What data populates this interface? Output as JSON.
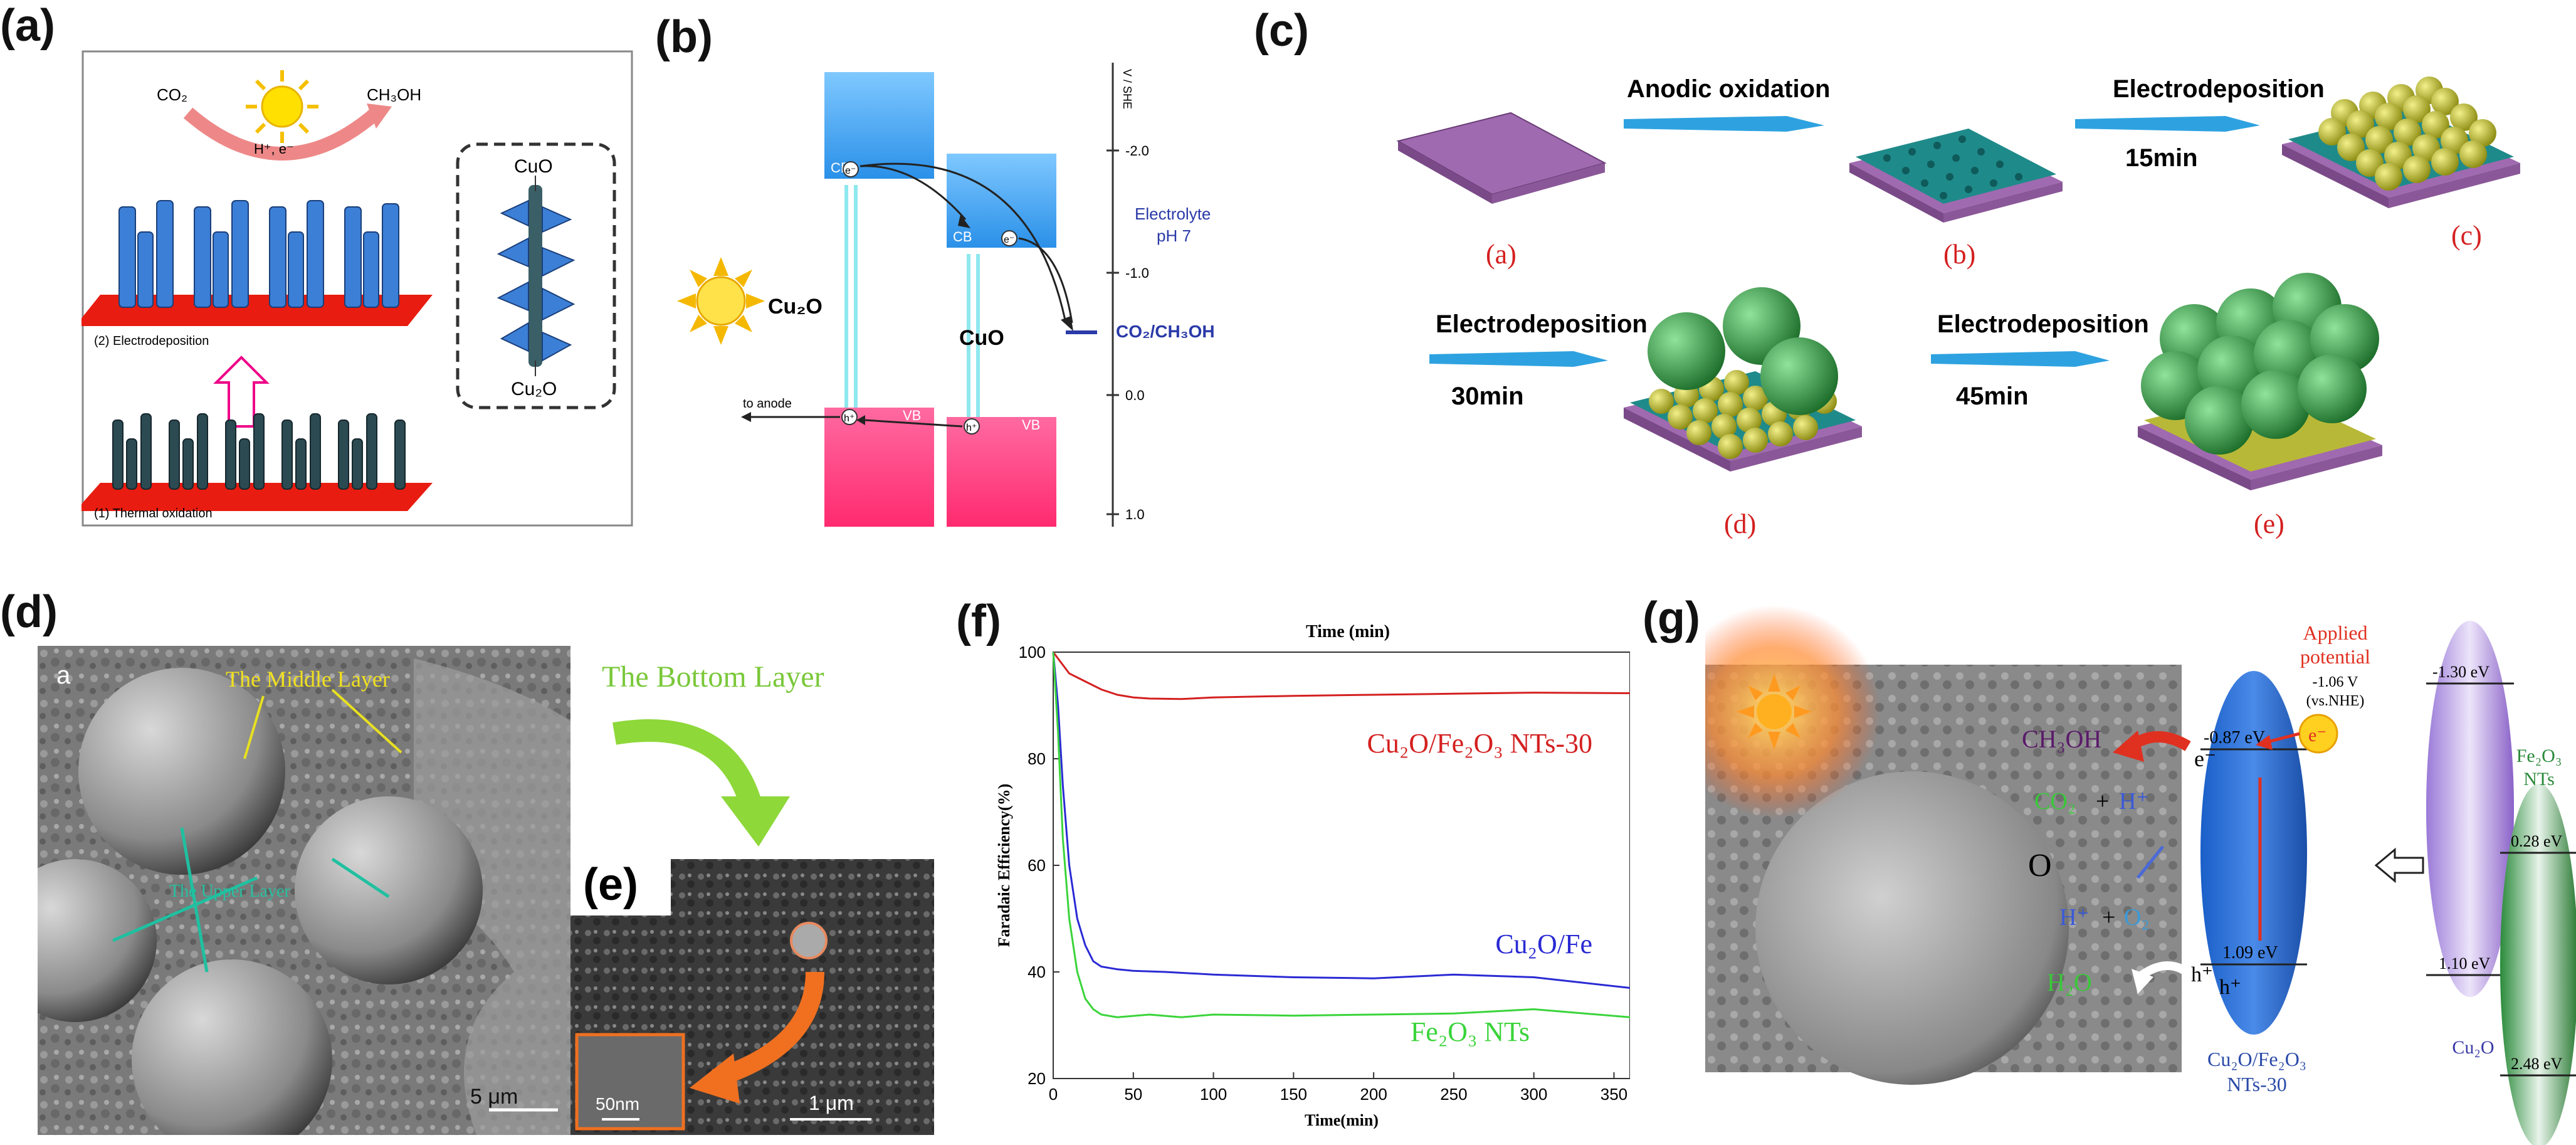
{
  "labels": {
    "a": "(a)",
    "b": "(b)",
    "c": "(c)",
    "d": "(d)",
    "e": "(e)",
    "f": "(f)",
    "g": "(g)"
  },
  "panel_a": {
    "co2": "CO₂",
    "ch3oh": "CH₃OH",
    "carriers": "H⁺, e⁻",
    "step2": "(2) Electrodeposition",
    "step1": "(1) Thermal oxidation",
    "cuo": "CuO",
    "cu2o": "Cu₂O"
  },
  "panel_b": {
    "axis_title": "V / SHE",
    "ticks": [
      "-2.0",
      "-1.0",
      "0.0",
      "1.0"
    ],
    "electrolyte": "Electrolyte",
    "ph": "pH 7",
    "cb": "CB",
    "vb": "VB",
    "cu2o": "Cu₂O",
    "cuo": "CuO",
    "redox": "CO₂/CH₃OH",
    "to_anode": "to anode",
    "electron": "e⁻",
    "hole": "h⁺"
  },
  "panel_c": {
    "anodic": "Anodic oxidation",
    "electrodep": "Electrodeposition",
    "t15": "15min",
    "t30": "30min",
    "t45": "45min",
    "sa": "(a)",
    "sb": "(b)",
    "sc": "(c)",
    "sd": "(d)",
    "se": "(e)"
  },
  "panel_d": {
    "a": "a",
    "middle": "The Middle Layer",
    "bottom": "The Bottom Layer",
    "upper": "The Upper Layer",
    "scale": "5 μm"
  },
  "panel_e": {
    "scale1": "1 μm",
    "scale2": "50nm"
  },
  "panel_f": {
    "top_title": "Time (min)",
    "xlabel": "Time(min)",
    "ylabel": "Faradaic Efficiency(%)",
    "s1": "Cu₂O/Fe₂O₃ NTs-30",
    "s2": "Cu₂O/Fe",
    "s3": "Fe₂O₃ NTs"
  },
  "panel_g": {
    "applied": "Applied",
    "potential": "potential",
    "v": "-1.06 V",
    "vs": "(vs.NHE)",
    "ch3oh": "CH₃OH",
    "co2": "CO₂",
    "plus": "+",
    "hplus": "H⁺",
    "h2o": "H₂O",
    "o2": "O₂",
    "e1": "e⁻",
    "e2": "e⁻",
    "h1": "h⁺",
    "h2": "h⁺",
    "ev087": "-0.87 eV",
    "ev109": "1.09 eV",
    "ev130": "-1.30 eV",
    "ev110": "1.10 eV",
    "ev028": "0.28 eV",
    "ev248": "2.48 eV",
    "composite": "Cu₂O/Fe₂O₃",
    "nts30": "NTs-30",
    "cu2o": "Cu₂O",
    "fe2o3": "Fe₂O₃",
    "nts": "NTs"
  },
  "chart_data": {
    "type": "line",
    "title": "Time (min)",
    "xlabel": "Time(min)",
    "ylabel": "Faradaic Efficiency(%)",
    "xlim": [
      0,
      360
    ],
    "ylim": [
      20,
      100
    ],
    "xticks": [
      0,
      50,
      100,
      150,
      200,
      250,
      300,
      350
    ],
    "yticks": [
      20,
      40,
      60,
      80,
      100
    ],
    "series": [
      {
        "name": "Cu₂O/Fe₂O₃ NTs-30",
        "color": "#d42020",
        "x": [
          0,
          5,
          10,
          20,
          30,
          40,
          50,
          60,
          80,
          100,
          150,
          200,
          250,
          300,
          360
        ],
        "y": [
          100,
          98,
          96,
          94.5,
          93,
          92,
          91.5,
          91.3,
          91.2,
          91.5,
          91.8,
          92,
          92.2,
          92.4,
          92.3
        ]
      },
      {
        "name": "Cu₂O/Fe",
        "color": "#2a2ad4",
        "x": [
          0,
          3,
          6,
          10,
          15,
          20,
          25,
          30,
          40,
          50,
          70,
          100,
          150,
          200,
          250,
          300,
          330,
          360
        ],
        "y": [
          100,
          90,
          75,
          60,
          50,
          45,
          42,
          41,
          40.5,
          40.2,
          40,
          39.5,
          39,
          38.8,
          39.5,
          39,
          38,
          37
        ]
      },
      {
        "name": "Fe₂O₃ NTs",
        "color": "#3ad43a",
        "x": [
          0,
          3,
          6,
          10,
          15,
          20,
          25,
          30,
          40,
          60,
          80,
          100,
          150,
          200,
          250,
          300,
          360
        ],
        "y": [
          100,
          85,
          65,
          50,
          40,
          35,
          33,
          32,
          31.5,
          32,
          31.5,
          32,
          31.8,
          32,
          32.2,
          33,
          31.5
        ]
      }
    ]
  }
}
